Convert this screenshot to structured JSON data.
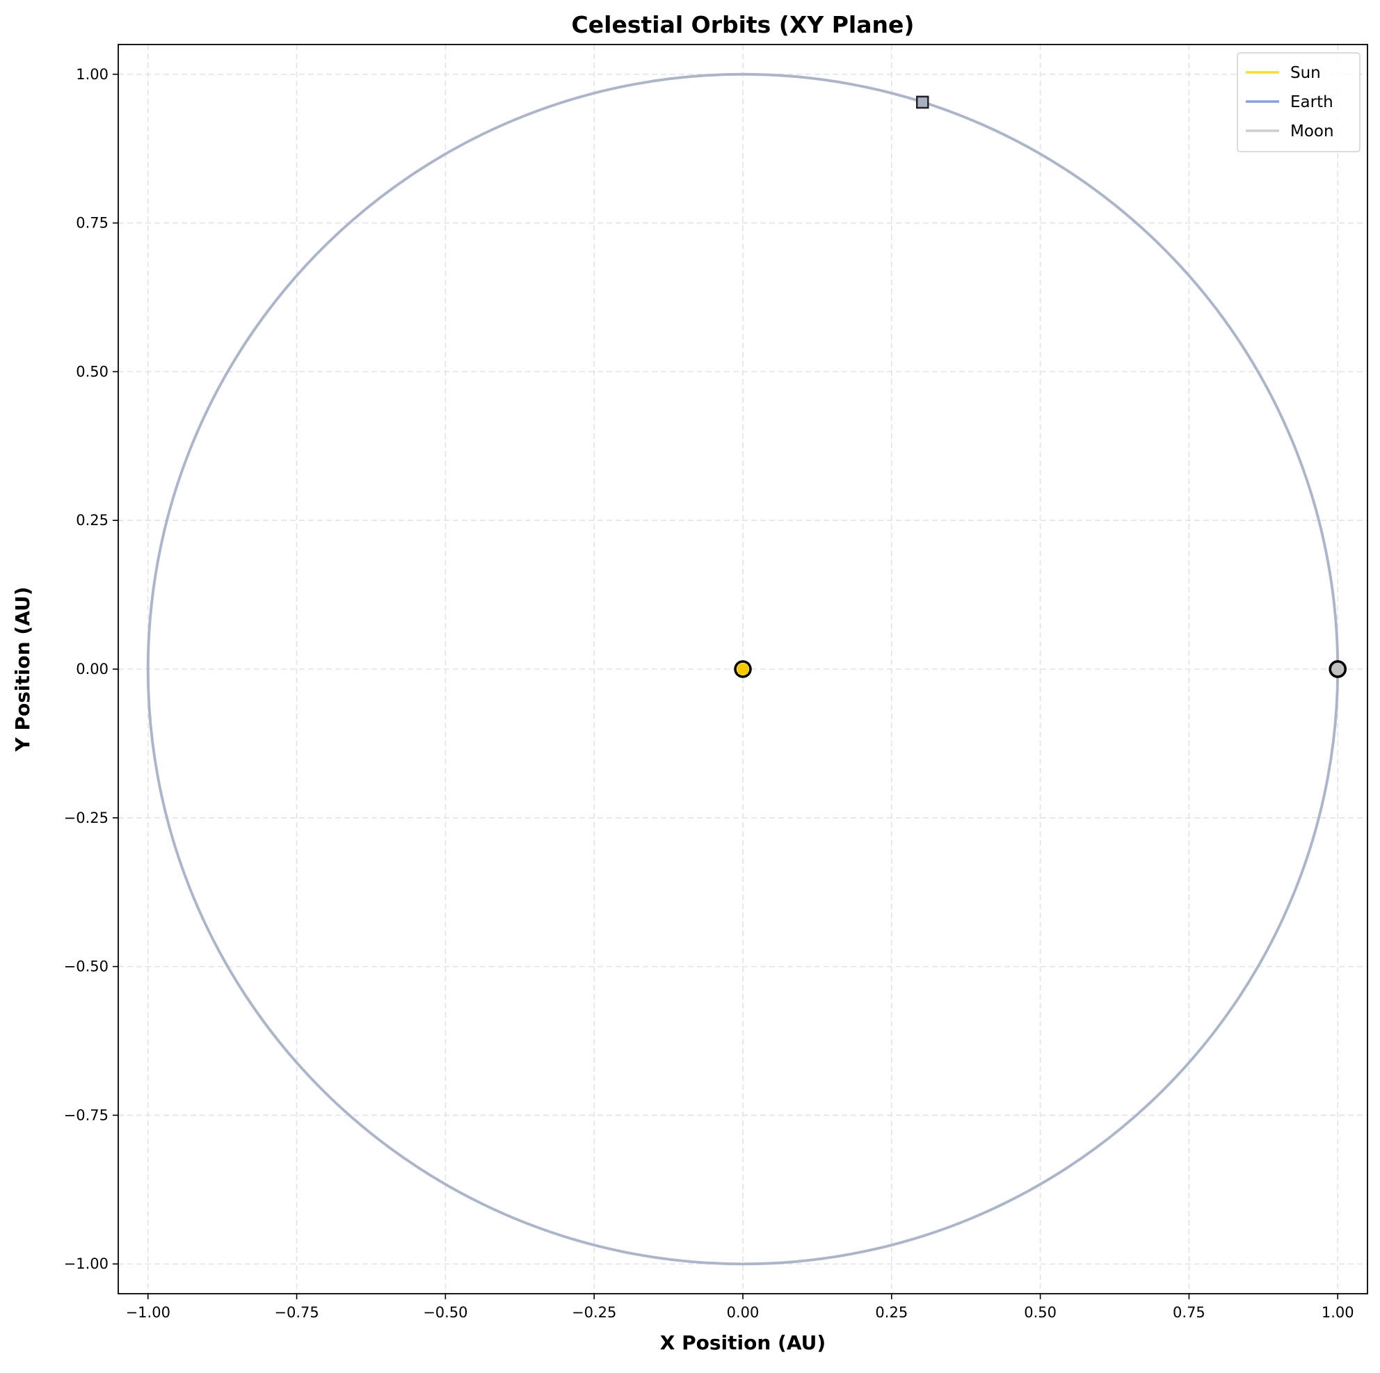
{
  "chart_data": {
    "type": "line",
    "title": "Celestial Orbits (XY Plane)",
    "xlabel": "X Position (AU)",
    "ylabel": "Y Position (AU)",
    "xlim": [
      -1.05,
      1.05
    ],
    "ylim": [
      -1.05,
      1.05
    ],
    "xticks": [
      -1.0,
      -0.75,
      -0.5,
      -0.25,
      0.0,
      0.25,
      0.5,
      0.75,
      1.0
    ],
    "yticks": [
      -1.0,
      -0.75,
      -0.5,
      -0.25,
      0.0,
      0.25,
      0.5,
      0.75,
      1.0
    ],
    "xtick_labels": [
      "−1.00",
      "−0.75",
      "−0.50",
      "−0.25",
      "0.00",
      "0.25",
      "0.50",
      "0.75",
      "1.00"
    ],
    "ytick_labels": [
      "−1.00",
      "−0.75",
      "−0.50",
      "−0.25",
      "0.00",
      "0.25",
      "0.50",
      "0.75",
      "1.00"
    ],
    "grid": true,
    "legend_position": "top-right",
    "series": [
      {
        "name": "Sun",
        "color": "#f5d90a",
        "orbit_radius": 0.0,
        "start": [
          0.0,
          0.0
        ],
        "end": [
          0.0,
          0.0
        ],
        "end_color": "#f5c800"
      },
      {
        "name": "Earth",
        "color": "#6f8ee0",
        "orbit_radius": 1.0,
        "start": [
          1.0,
          0.0
        ],
        "end": [
          0.302,
          0.953
        ],
        "end_color": "#a4afc8"
      },
      {
        "name": "Moon",
        "color": "#c8c8c8",
        "orbit_radius": 1.0,
        "start": [
          1.0,
          0.0
        ],
        "end": [
          0.302,
          0.953
        ],
        "end_color": "#a9b0c2"
      }
    ]
  }
}
